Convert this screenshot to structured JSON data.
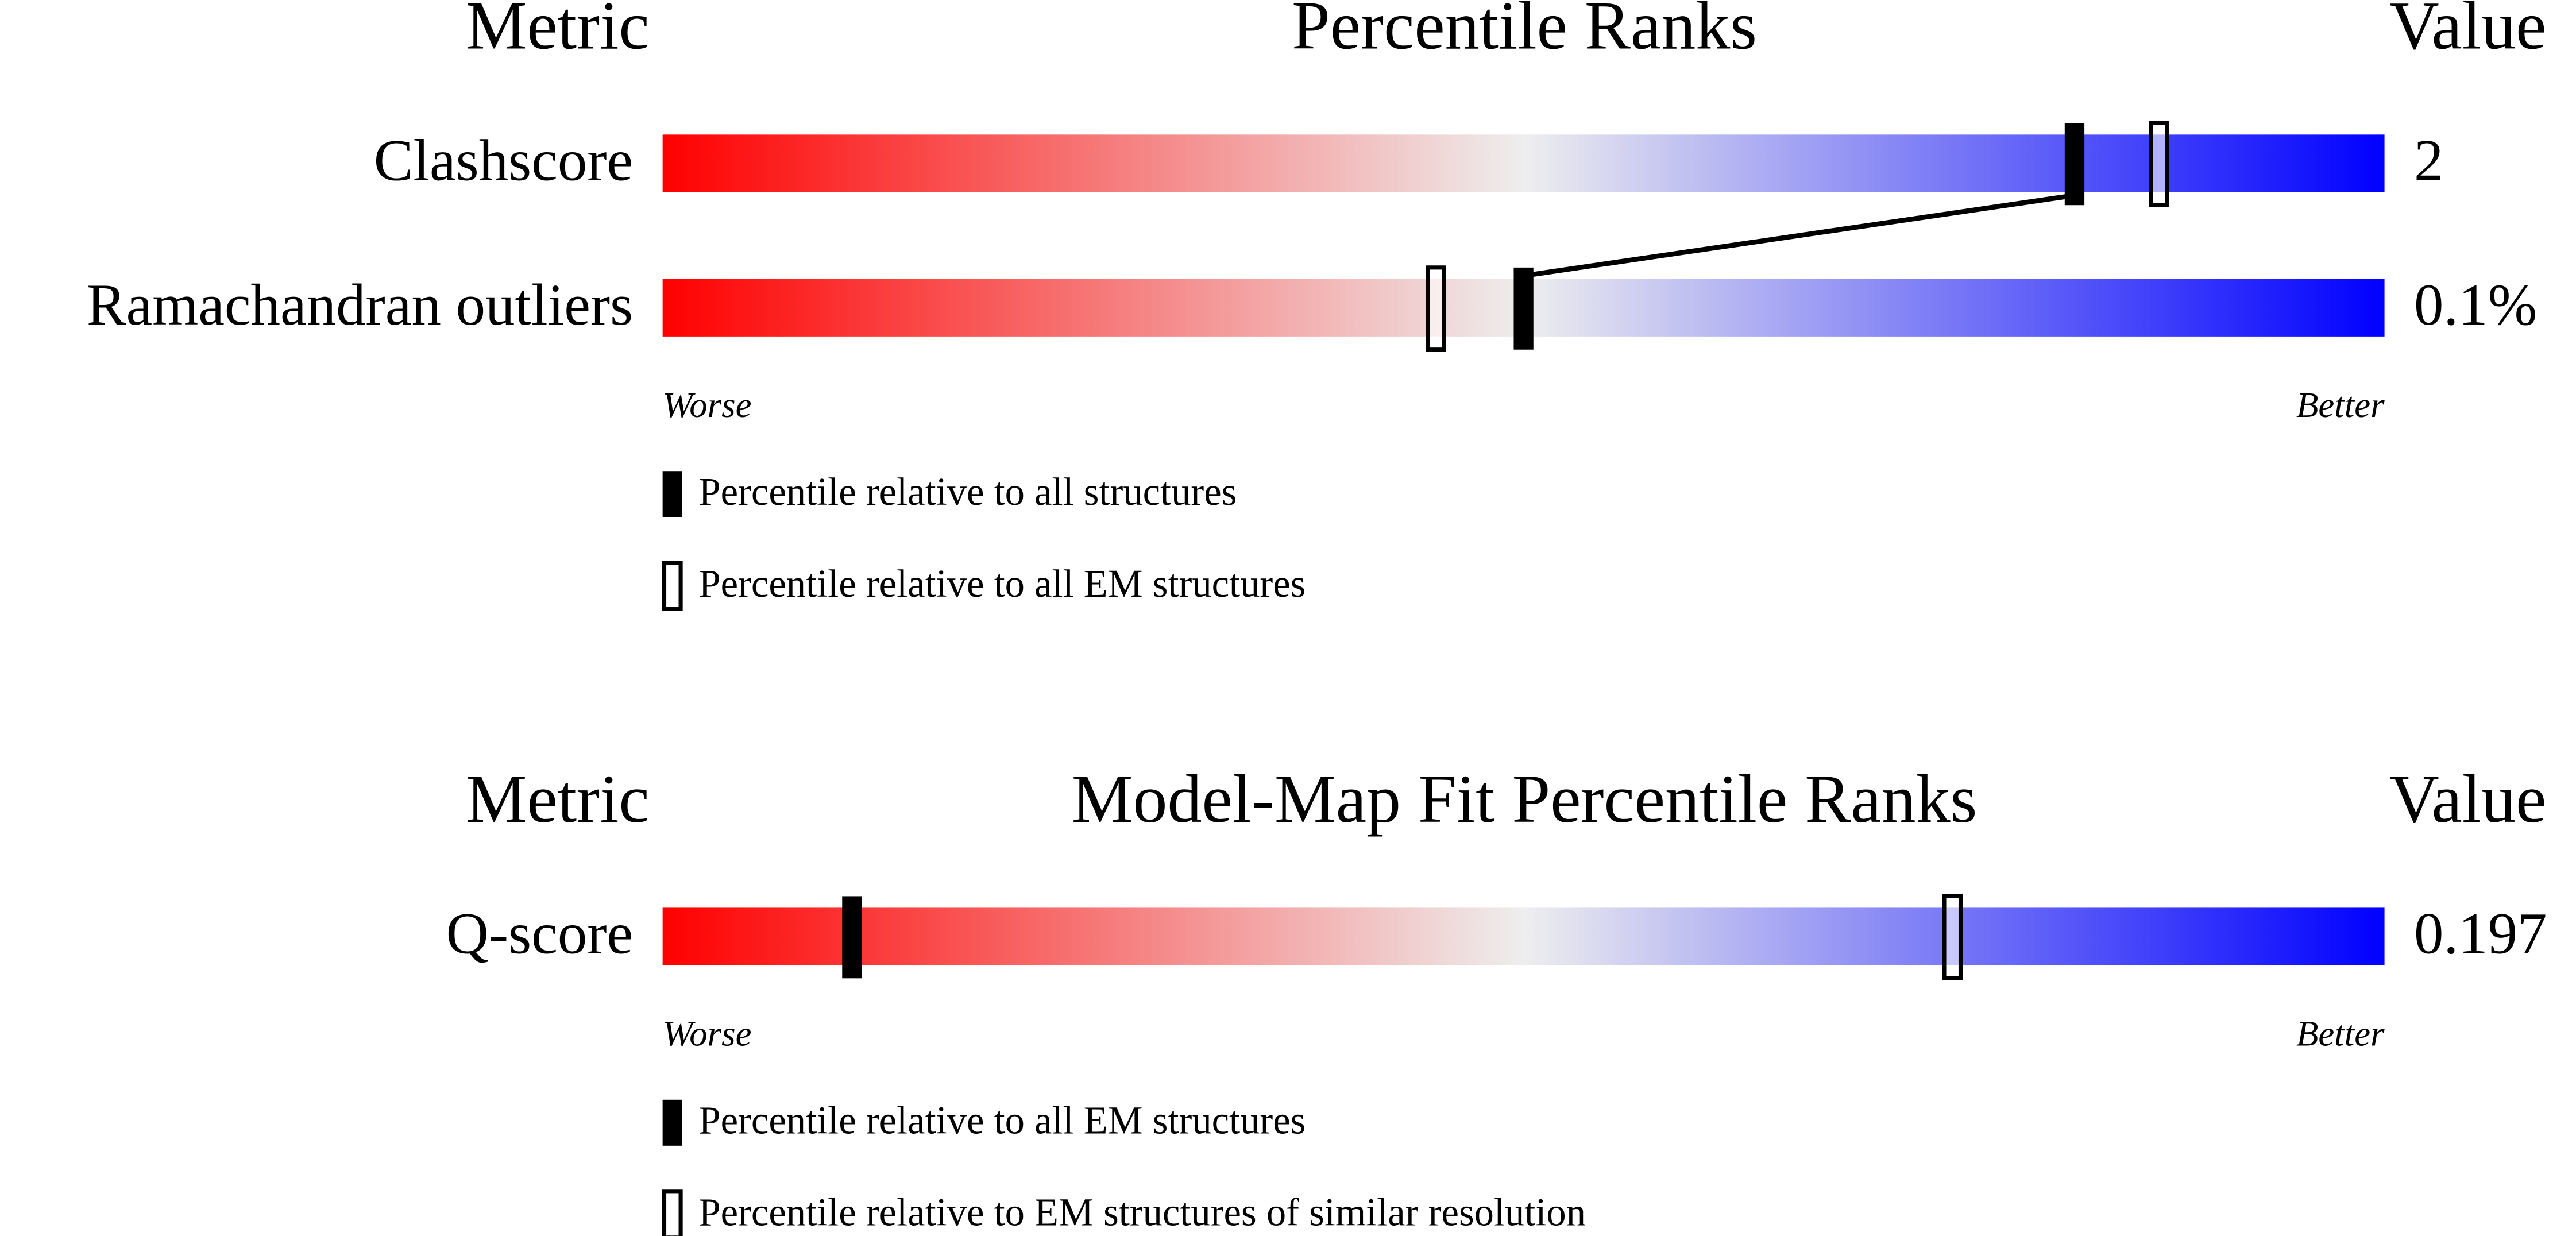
{
  "chart_data": [
    {
      "type": "percentile",
      "metric_header": "Metric",
      "title": "Percentile Ranks",
      "value_header": "Value",
      "categories": [
        "Clashscore",
        "Ramachandran outliers"
      ],
      "value_labels": [
        "2",
        "0.1%"
      ],
      "xlim": [
        0,
        100
      ],
      "series": [
        {
          "name": "Percentile relative to all structures",
          "color": "#000000",
          "style": "filled",
          "values": [
            82,
            50
          ]
        },
        {
          "name": "Percentile relative to all EM structures",
          "color": "#000000",
          "style": "open",
          "values": [
            87,
            45
          ]
        }
      ],
      "scale_labels": [
        "Worse",
        "Better"
      ]
    },
    {
      "type": "percentile",
      "metric_header": "Metric",
      "title": "Model-Map Fit Percentile Ranks",
      "value_header": "Value",
      "categories": [
        "Q-score"
      ],
      "value_labels": [
        "0.197"
      ],
      "xlim": [
        0,
        100
      ],
      "series": [
        {
          "name": "Percentile relative to all EM structures",
          "color": "#000000",
          "style": "filled",
          "values": [
            11
          ]
        },
        {
          "name": "Percentile relative to EM structures of similar resolution",
          "color": "#000000",
          "style": "open",
          "values": [
            75
          ]
        }
      ],
      "scale_labels": [
        "Worse",
        "Better"
      ]
    }
  ]
}
